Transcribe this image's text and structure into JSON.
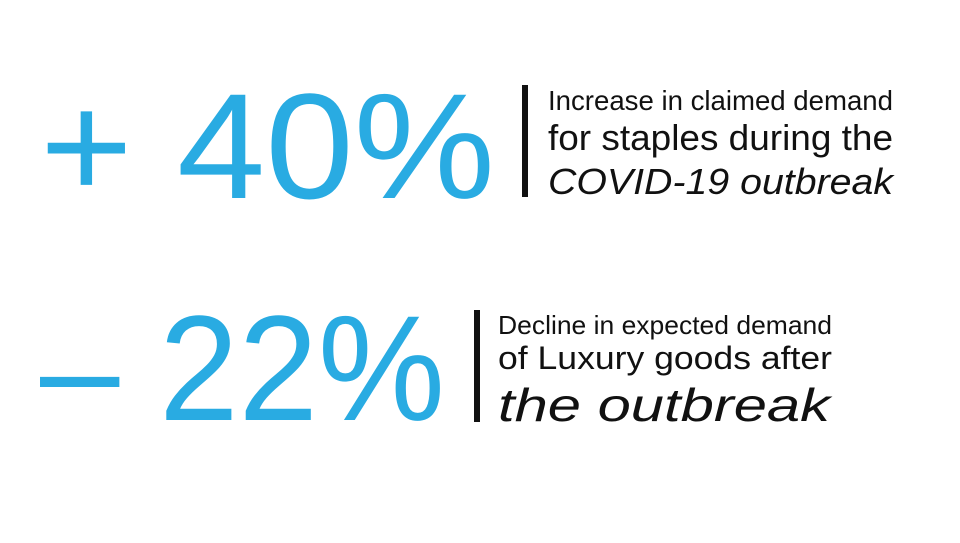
{
  "stats": [
    {
      "figure": "+ 40%",
      "lines": [
        "Increase in claimed demand",
        "for staples during the",
        "COVID-19 outbreak"
      ]
    },
    {
      "figure": "– 22%",
      "lines": [
        "Decline in expected demand",
        "of Luxury goods after",
        "the outbreak"
      ]
    }
  ]
}
